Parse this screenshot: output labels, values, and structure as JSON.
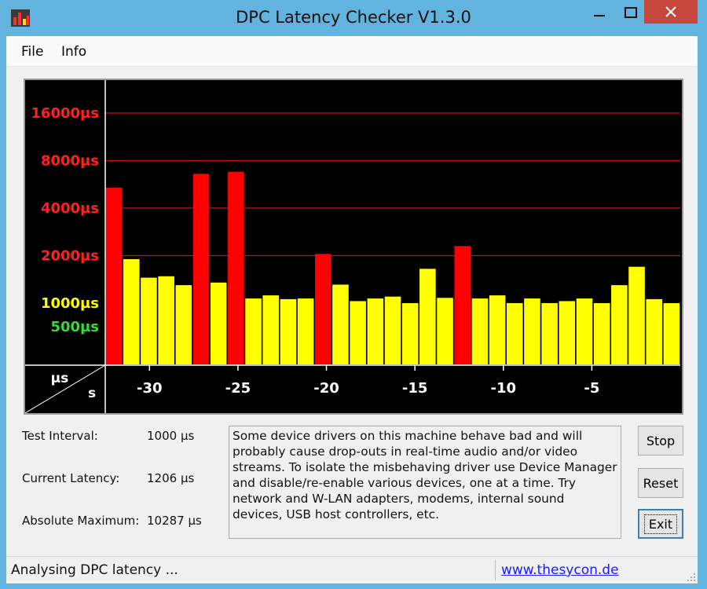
{
  "window": {
    "title": "DPC Latency Checker V1.3.0",
    "min_glyph": "—",
    "max_glyph": "☐",
    "close_glyph": "✕"
  },
  "menu": {
    "items": [
      "File",
      "Info"
    ]
  },
  "chart_data": {
    "type": "bar",
    "y_labels": [
      {
        "text": "16000µs",
        "value": 16000,
        "color": "#ff2020"
      },
      {
        "text": "8000µs",
        "value": 8000,
        "color": "#ff2020"
      },
      {
        "text": "4000µs",
        "value": 4000,
        "color": "#ff2020"
      },
      {
        "text": "2000µs",
        "value": 2000,
        "color": "#ff2020"
      },
      {
        "text": "1000µs",
        "value": 1000,
        "color": "#ffff00"
      },
      {
        "text": "500µs",
        "value": 500,
        "color": "#33dd33"
      }
    ],
    "x_ticks": [
      -30,
      -25,
      -20,
      -15,
      -10,
      -5
    ],
    "x_tick_labels": [
      "-30",
      "-25",
      "-20",
      "-15",
      "-10",
      "-5"
    ],
    "x_range": [
      -32.5,
      0
    ],
    "y_log_scale": true,
    "corner_labels": {
      "y_unit": "µs",
      "x_unit": "s"
    },
    "red_threshold_us": 2000,
    "bar_color_ok": "#ffff00",
    "bar_color_bad": "#ff0000",
    "values": [
      5400,
      1900,
      1450,
      1480,
      1300,
      6600,
      1350,
      6800,
      1070,
      1120,
      1060,
      1070,
      2050,
      1310,
      1030,
      1070,
      1100,
      1000,
      1650,
      1080,
      2300,
      1070,
      1120,
      1000,
      1070,
      1000,
      1030,
      1070,
      1000,
      1300,
      1700,
      1060,
      1000
    ]
  },
  "info": {
    "test_interval_label": "Test Interval:",
    "test_interval_value": "1000 µs",
    "current_latency_label": "Current Latency:",
    "current_latency_value": "1206 µs",
    "absolute_max_label": "Absolute Maximum:",
    "absolute_max_value": "10287 µs"
  },
  "message": "Some device drivers on this machine behave bad and will probably cause drop-outs in real-time audio and/or video streams. To isolate the misbehaving driver use Device Manager and disable/re-enable various devices, one at a time. Try network and W-LAN adapters, modems, internal sound devices, USB host controllers, etc.",
  "buttons": {
    "stop": "Stop",
    "reset": "Reset",
    "exit": "Exit"
  },
  "status": {
    "text": "Analysing DPC latency ...",
    "link": "www.thesycon.de"
  }
}
